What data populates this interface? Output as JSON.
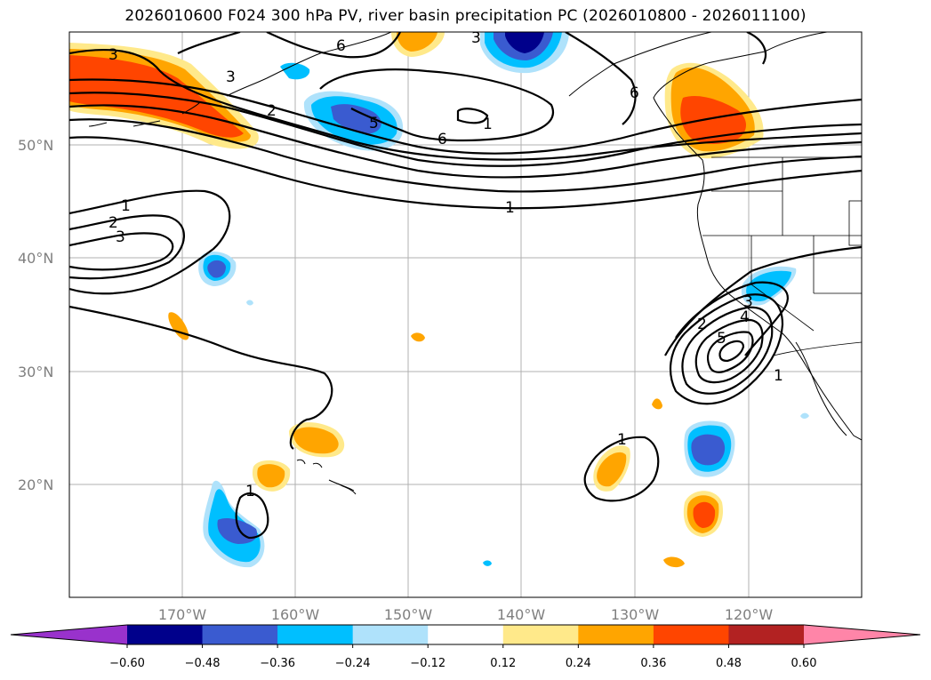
{
  "title": "2026010600 F024 300 hPa PV, river basin precipitation PC (2026010800 - 2026011100)",
  "map": {
    "lat_labels": [
      "50°N",
      "40°N",
      "30°N",
      "20°N"
    ],
    "lon_labels": [
      "170°W",
      "160°W",
      "150°W",
      "140°W",
      "130°W",
      "120°W"
    ],
    "contour_labels": [
      "3",
      "6",
      "3",
      "3",
      "6",
      "3",
      "2",
      "5",
      "1",
      "6",
      "1",
      "1",
      "2",
      "3",
      "3",
      "2",
      "4",
      "5",
      "1",
      "1",
      "1"
    ]
  },
  "colorbar": {
    "ticks": [
      "−0.60",
      "−0.48",
      "−0.36",
      "−0.24",
      "−0.12",
      "0.12",
      "0.24",
      "0.36",
      "0.48",
      "0.60"
    ],
    "colors": [
      "#9932cc",
      "#00008b",
      "#3a5bd0",
      "#00bfff",
      "#afe2fb",
      "#ffffff",
      "#ffe98a",
      "#ffa500",
      "#ff4500",
      "#b22222",
      "#ff85a8"
    ]
  }
}
